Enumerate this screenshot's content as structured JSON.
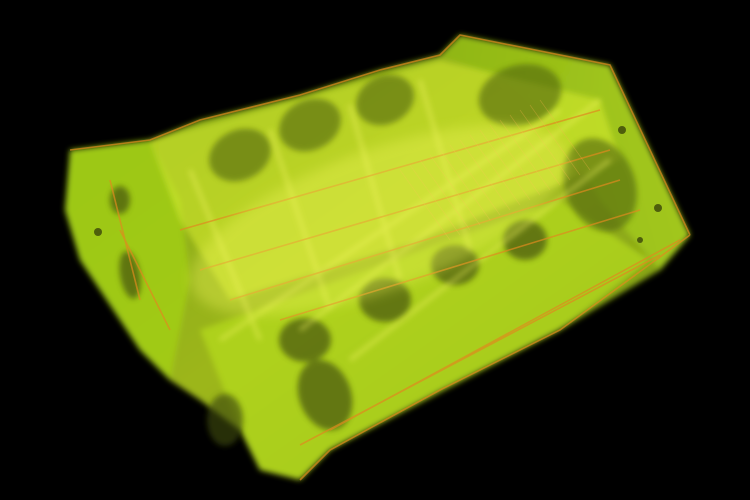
{
  "scene": {
    "subject": "engine-block-volume-render",
    "background_color": "#000000",
    "colors": {
      "body": "#b7e21b",
      "body_bright": "#e3f23a",
      "body_dark": "#6f9a0f",
      "edge_orange": "#e08a1e",
      "hole_dark": "#3d4a08"
    }
  }
}
